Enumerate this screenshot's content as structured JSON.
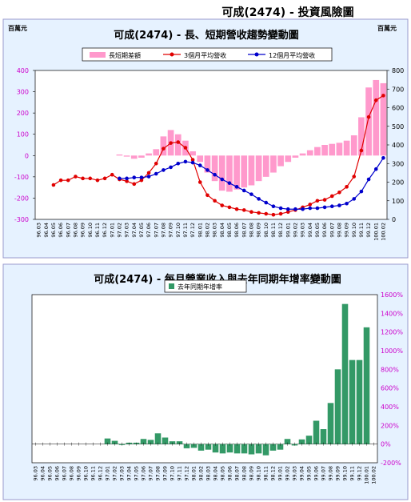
{
  "header": {
    "title": "可成(2474) - 投資風險圖"
  },
  "chart_data": [
    {
      "type": "bar+line",
      "title": "可成(2474) - 長、短期營收趨勢變動圖",
      "unit_left": "百萬元",
      "unit_right": "百萬元",
      "categories": [
        "96.03",
        "96.04",
        "96.05",
        "96.06",
        "96.07",
        "96.08",
        "96.09",
        "96.10",
        "96.11",
        "96.12",
        "97.01",
        "97.02",
        "97.03",
        "97.04",
        "97.05",
        "97.06",
        "97.07",
        "97.08",
        "97.09",
        "97.10",
        "97.11",
        "97.12",
        "98.01",
        "98.02",
        "98.03",
        "98.04",
        "98.05",
        "98.06",
        "98.07",
        "98.08",
        "98.09",
        "98.10",
        "98.11",
        "98.12",
        "99.01",
        "99.02",
        "99.03",
        "99.04",
        "99.05",
        "99.06",
        "99.07",
        "99.08",
        "99.09",
        "99.10",
        "99.11",
        "99.12",
        "100.01",
        "100.02"
      ],
      "left_axis": {
        "min": -300,
        "max": 400,
        "ticks": [
          400,
          300,
          200,
          100,
          0,
          -100,
          -200,
          -300
        ]
      },
      "right_axis": {
        "min": 0,
        "max": 800,
        "ticks": [
          800,
          700,
          600,
          500,
          400,
          300,
          200,
          100,
          0
        ]
      },
      "series": [
        {
          "name": "長短期差額",
          "type": "bar",
          "axis": "left",
          "color": "#ff99cc",
          "values": [
            null,
            null,
            null,
            null,
            null,
            null,
            null,
            null,
            null,
            null,
            null,
            5,
            -5,
            -15,
            -10,
            10,
            30,
            90,
            120,
            100,
            70,
            20,
            -30,
            -80,
            -120,
            -165,
            -170,
            -160,
            -150,
            -140,
            -120,
            -100,
            -80,
            -50,
            -30,
            -10,
            10,
            25,
            40,
            50,
            55,
            60,
            70,
            95,
            180,
            320,
            355,
            340
          ]
        },
        {
          "name": "3個月平均營收",
          "type": "line",
          "axis": "right",
          "color": "#e00000",
          "values": [
            null,
            null,
            185,
            210,
            210,
            230,
            220,
            220,
            210,
            220,
            240,
            215,
            205,
            190,
            210,
            250,
            300,
            380,
            410,
            415,
            385,
            320,
            200,
            130,
            100,
            75,
            65,
            55,
            50,
            40,
            35,
            30,
            25,
            30,
            40,
            50,
            65,
            80,
            100,
            105,
            125,
            145,
            175,
            230,
            370,
            550,
            640,
            665
          ]
        },
        {
          "name": "12個月平均營收",
          "type": "line",
          "axis": "right",
          "color": "#0000cc",
          "values": [
            null,
            null,
            null,
            null,
            null,
            null,
            null,
            null,
            null,
            null,
            null,
            220,
            220,
            225,
            225,
            230,
            245,
            265,
            280,
            300,
            310,
            305,
            290,
            265,
            240,
            215,
            195,
            175,
            155,
            135,
            110,
            90,
            70,
            60,
            55,
            55,
            55,
            60,
            60,
            65,
            70,
            75,
            85,
            110,
            150,
            215,
            270,
            330
          ]
        }
      ]
    },
    {
      "type": "bar",
      "title": "可成(2474) - 每月營業收入與去年同期年增率變動圖",
      "categories": [
        "96.03",
        "96.04",
        "96.05",
        "96.06",
        "96.07",
        "96.08",
        "96.09",
        "96.10",
        "96.11",
        "96.12",
        "97.01",
        "97.02",
        "97.03",
        "97.04",
        "97.05",
        "97.06",
        "97.07",
        "97.08",
        "97.09",
        "97.10",
        "97.11",
        "97.12",
        "98.01",
        "98.02",
        "98.03",
        "98.04",
        "98.05",
        "98.06",
        "98.07",
        "98.08",
        "98.09",
        "98.10",
        "98.11",
        "98.12",
        "99.01",
        "99.02",
        "99.03",
        "99.04",
        "99.05",
        "99.06",
        "99.07",
        "99.08",
        "99.09",
        "99.10",
        "99.11",
        "99.12",
        "100.01",
        "100.02"
      ],
      "ylim": [
        -200,
        1600
      ],
      "yticks": [
        "1600%",
        "1400%",
        "1200%",
        "1000%",
        "800%",
        "600%",
        "400%",
        "200%",
        "0%",
        "-200%"
      ],
      "series": [
        {
          "name": "去年同期年增率",
          "color": "#339966",
          "values": [
            null,
            null,
            null,
            null,
            null,
            null,
            null,
            null,
            null,
            null,
            60,
            35,
            -10,
            15,
            15,
            55,
            45,
            115,
            70,
            30,
            30,
            -45,
            -40,
            -70,
            -60,
            -90,
            -100,
            -90,
            -100,
            -100,
            -110,
            -100,
            -120,
            -70,
            -60,
            55,
            -15,
            50,
            90,
            250,
            160,
            440,
            800,
            1500,
            900,
            900,
            1250,
            null
          ]
        }
      ]
    }
  ]
}
